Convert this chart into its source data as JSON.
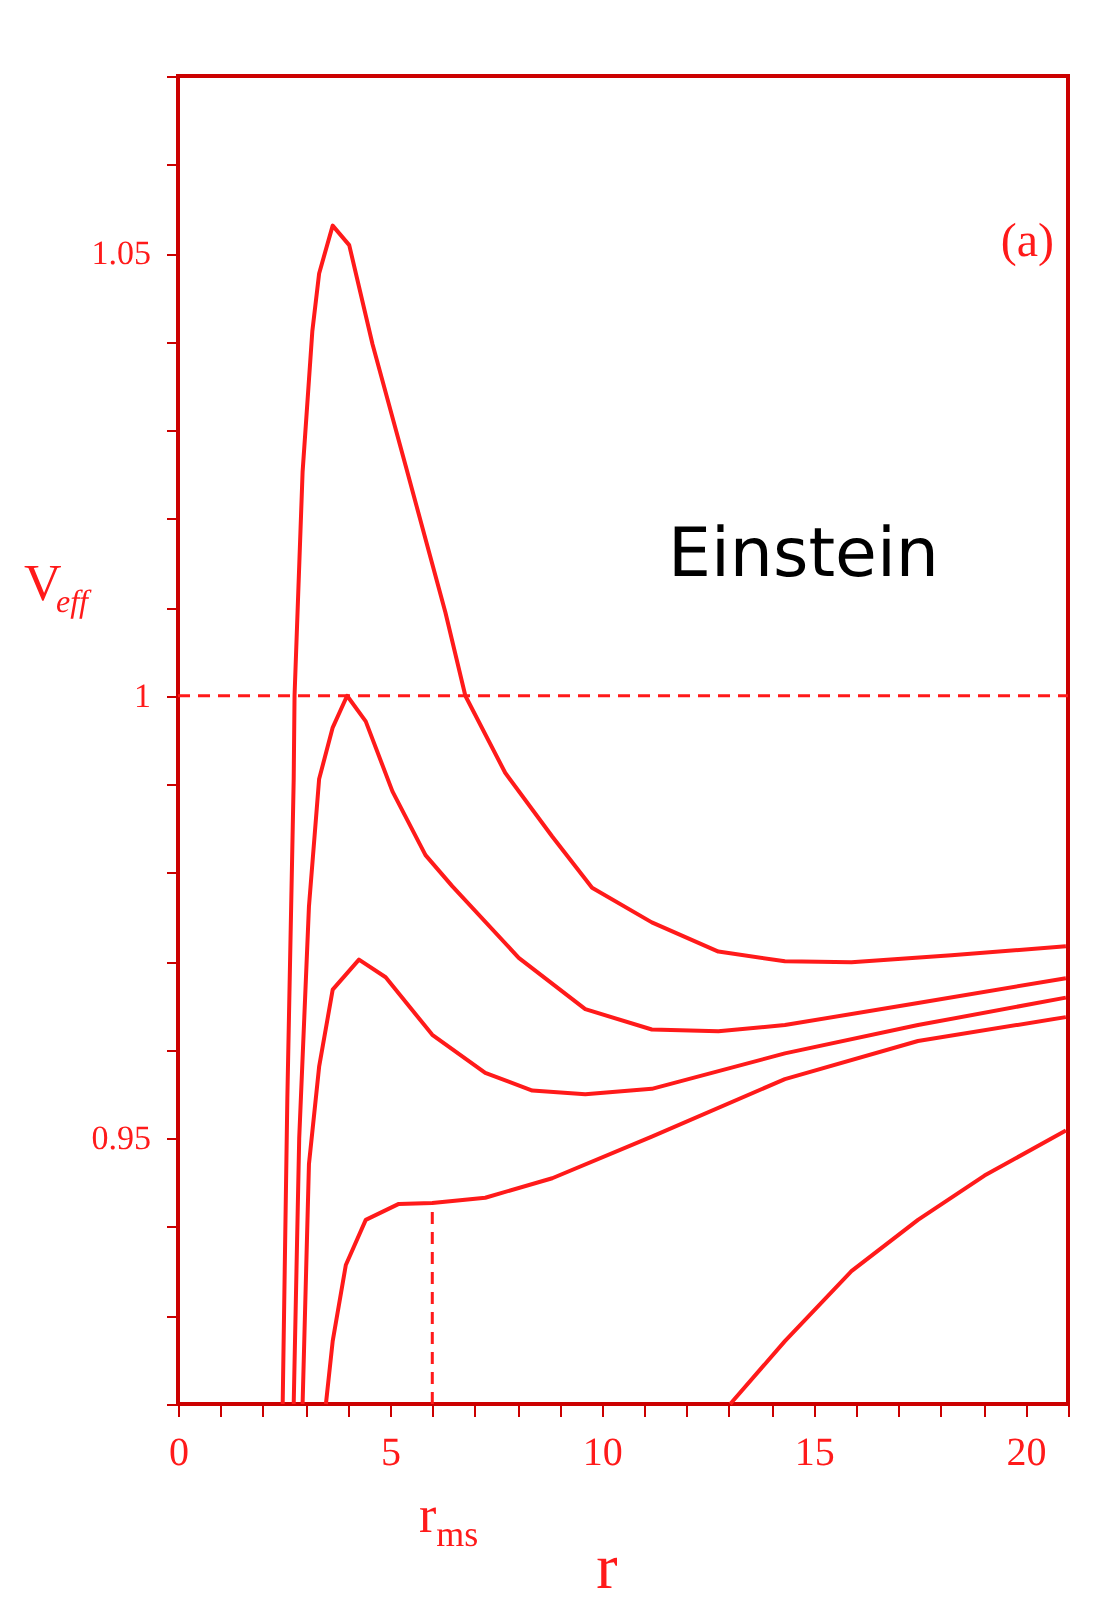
{
  "chart_data": {
    "type": "line",
    "xlabel": "r",
    "ylabel": "V$_{eff}$",
    "xlim": [
      0,
      21
    ],
    "ylim": [
      0.92,
      1.07
    ],
    "xticks": [
      0,
      {
        "value": 1,
        "label": null
      },
      {
        "value": 2,
        "label": null
      },
      {
        "value": 3,
        "label": null
      },
      {
        "value": 4,
        "label": null
      },
      5,
      {
        "value": 6,
        "label": null
      },
      {
        "value": 7,
        "label": null
      },
      {
        "value": 8,
        "label": null
      },
      {
        "value": 9,
        "label": null
      },
      10,
      {
        "value": 11,
        "label": null
      },
      {
        "value": 12,
        "label": null
      },
      {
        "value": 13,
        "label": null
      },
      {
        "value": 14,
        "label": null
      },
      15,
      {
        "value": 16,
        "label": null
      },
      {
        "value": 17,
        "label": null
      },
      {
        "value": 18,
        "label": null
      },
      {
        "value": 19,
        "label": null
      },
      20,
      {
        "value": 21,
        "label": null
      }
    ],
    "yticks": [
      {
        "value": 0.92,
        "label": null
      },
      {
        "value": 0.93,
        "label": null
      },
      {
        "value": 0.94,
        "label": null
      },
      0.95,
      {
        "value": 0.96,
        "label": null
      },
      {
        "value": 0.97,
        "label": null
      },
      {
        "value": 0.98,
        "label": null
      },
      {
        "value": 0.99,
        "label": null
      },
      1,
      {
        "value": 1.01,
        "label": null
      },
      {
        "value": 1.02,
        "label": null
      },
      {
        "value": 1.03,
        "label": null
      },
      {
        "value": 1.04,
        "label": null
      },
      1.05,
      {
        "value": 1.06,
        "label": null
      },
      {
        "value": 1.07,
        "label": null
      }
    ],
    "grid": false,
    "marker": "none",
    "line_style": "solid",
    "series": [
      {
        "color": "#ff1a1a",
        "x": [
          2.47,
          2.58,
          2.73,
          2.75,
          2.94,
          3.17,
          3.33,
          3.65,
          4.04,
          4.59,
          5.37,
          6.31,
          6.78,
          7.72,
          8.83,
          9.77,
          11.18,
          12.75,
          14.32,
          15.89,
          18.25,
          20.95
        ],
        "values": [
          0.92,
          0.9545,
          0.9906,
          1.0,
          1.0253,
          1.0412,
          1.0477,
          1.0531,
          1.0509,
          1.0397,
          1.026,
          1.0094,
          1.0,
          0.9913,
          0.9841,
          0.9783,
          0.9744,
          0.9711,
          0.97,
          0.9699,
          0.9707,
          0.9717
        ]
      },
      {
        "color": "#ff1a1a",
        "x": [
          2.73,
          2.86,
          3.09,
          3.33,
          3.65,
          3.99,
          4.43,
          5.06,
          5.84,
          6.47,
          8.04,
          9.61,
          11.18,
          12.75,
          14.32,
          17.46,
          20.95
        ],
        "values": [
          0.92,
          0.95,
          0.9762,
          0.9906,
          0.9964,
          1.0,
          0.9971,
          0.9892,
          0.982,
          0.9785,
          0.9704,
          0.9646,
          0.9623,
          0.9621,
          0.9628,
          0.9653,
          0.9681
        ]
      },
      {
        "color": "#ff1a1a",
        "x": [
          2.94,
          3.09,
          3.33,
          3.65,
          4.27,
          4.9,
          6.0,
          7.25,
          8.36,
          9.61,
          11.18,
          14.32,
          17.46,
          20.95
        ],
        "values": [
          0.92,
          0.9471,
          0.9581,
          0.9668,
          0.9702,
          0.9682,
          0.9617,
          0.9574,
          0.9554,
          0.955,
          0.9556,
          0.9596,
          0.9628,
          0.9659
        ]
      },
      {
        "color": "#ff1a1a",
        "x": [
          3.49,
          3.65,
          3.96,
          4.43,
          5.21,
          6.0,
          7.25,
          8.83,
          11.18,
          14.32,
          17.46,
          20.95
        ],
        "values": [
          0.92,
          0.9271,
          0.9357,
          0.9408,
          0.9426,
          0.9427,
          0.9433,
          0.9455,
          0.9502,
          0.9567,
          0.961,
          0.9637
        ]
      },
      {
        "color": "#ff1a1a",
        "x": [
          13.03,
          14.32,
          15.89,
          17.46,
          19.03,
          20.95
        ],
        "values": [
          0.92,
          0.9271,
          0.935,
          0.9408,
          0.9458,
          0.9509
        ]
      }
    ],
    "ref_lines": [
      {
        "axis": "y",
        "value": 1,
        "color": "#ff1a1a",
        "line_style": "dashed"
      },
      {
        "axis": "x",
        "value": 6,
        "label": "r$_{ms}$",
        "color": "#ff1a1a",
        "line_style": "dashed"
      }
    ],
    "annotations": [
      "(a)",
      "Einstein"
    ]
  }
}
